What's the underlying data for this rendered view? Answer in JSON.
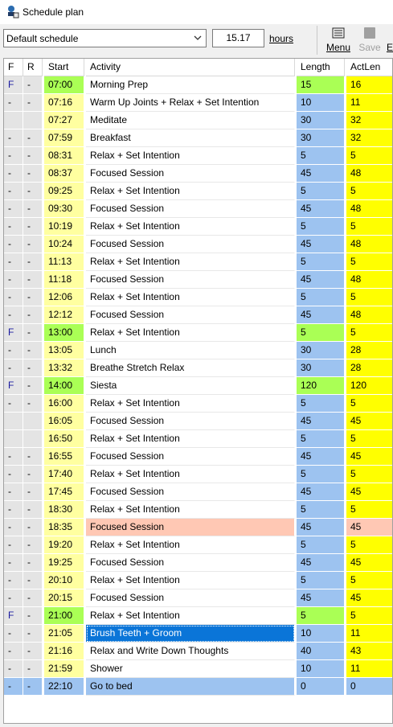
{
  "window": {
    "title": "Schedule plan"
  },
  "toolbar": {
    "schedule_select": "Default schedule",
    "hours_value": "15.17",
    "hours_label": "hours",
    "menu_label": "Menu",
    "save_label": "Save",
    "extra_label": "E"
  },
  "columns": {
    "f": "F",
    "r": "R",
    "start": "Start",
    "activity": "Activity",
    "length": "Length",
    "actlen": "ActLen"
  },
  "colors": {
    "yellow": "#ffff00",
    "lightyellow": "#ffffa0",
    "green": "#aaff55",
    "blue": "#9dc3f0",
    "salmon": "#ffc8b4",
    "selected": "#0a75d8"
  },
  "rows": [
    {
      "f": "F",
      "r": "-",
      "start": "07:00",
      "activity": "Morning Prep",
      "length": "15",
      "actlen": "16"
    },
    {
      "f": "-",
      "r": "-",
      "start": "07:16",
      "activity": "Warm Up Joints + Relax + Set Intention",
      "length": "10",
      "actlen": "11"
    },
    {
      "f": "",
      "r": "",
      "start": "07:27",
      "activity": "Meditate",
      "length": "30",
      "actlen": "32"
    },
    {
      "f": "-",
      "r": "-",
      "start": "07:59",
      "activity": "Breakfast",
      "length": "30",
      "actlen": "32"
    },
    {
      "f": "-",
      "r": "-",
      "start": "08:31",
      "activity": "Relax + Set Intention",
      "length": "5",
      "actlen": "5"
    },
    {
      "f": "-",
      "r": "-",
      "start": "08:37",
      "activity": "Focused Session",
      "length": "45",
      "actlen": "48"
    },
    {
      "f": "-",
      "r": "-",
      "start": "09:25",
      "activity": "Relax + Set Intention",
      "length": "5",
      "actlen": "5"
    },
    {
      "f": "-",
      "r": "-",
      "start": "09:30",
      "activity": "Focused Session",
      "length": "45",
      "actlen": "48"
    },
    {
      "f": "-",
      "r": "-",
      "start": "10:19",
      "activity": "Relax + Set Intention",
      "length": "5",
      "actlen": "5"
    },
    {
      "f": "-",
      "r": "-",
      "start": "10:24",
      "activity": "Focused Session",
      "length": "45",
      "actlen": "48"
    },
    {
      "f": "-",
      "r": "-",
      "start": "11:13",
      "activity": "Relax + Set Intention",
      "length": "5",
      "actlen": "5"
    },
    {
      "f": "-",
      "r": "-",
      "start": "11:18",
      "activity": "Focused Session",
      "length": "45",
      "actlen": "48"
    },
    {
      "f": "-",
      "r": "-",
      "start": "12:06",
      "activity": "Relax + Set Intention",
      "length": "5",
      "actlen": "5"
    },
    {
      "f": "-",
      "r": "-",
      "start": "12:12",
      "activity": "Focused Session",
      "length": "45",
      "actlen": "48"
    },
    {
      "f": "F",
      "r": "-",
      "start": "13:00",
      "activity": "Relax + Set Intention",
      "length": "5",
      "actlen": "5"
    },
    {
      "f": "-",
      "r": "-",
      "start": "13:05",
      "activity": "Lunch",
      "length": "30",
      "actlen": "28"
    },
    {
      "f": "-",
      "r": "-",
      "start": "13:32",
      "activity": "Breathe Stretch Relax",
      "length": "30",
      "actlen": "28"
    },
    {
      "f": "F",
      "r": "-",
      "start": "14:00",
      "activity": "Siesta",
      "length": "120",
      "actlen": "120"
    },
    {
      "f": "-",
      "r": "-",
      "start": "16:00",
      "activity": "Relax + Set Intention",
      "length": "5",
      "actlen": "5"
    },
    {
      "f": "",
      "r": "",
      "start": "16:05",
      "activity": "Focused Session",
      "length": "45",
      "actlen": "45"
    },
    {
      "f": "",
      "r": "",
      "start": "16:50",
      "activity": "Relax + Set Intention",
      "length": "5",
      "actlen": "5"
    },
    {
      "f": "-",
      "r": "-",
      "start": "16:55",
      "activity": "Focused Session",
      "length": "45",
      "actlen": "45"
    },
    {
      "f": "-",
      "r": "-",
      "start": "17:40",
      "activity": "Relax + Set Intention",
      "length": "5",
      "actlen": "5"
    },
    {
      "f": "-",
      "r": "-",
      "start": "17:45",
      "activity": "Focused Session",
      "length": "45",
      "actlen": "45"
    },
    {
      "f": "-",
      "r": "-",
      "start": "18:30",
      "activity": "Relax + Set Intention",
      "length": "5",
      "actlen": "5"
    },
    {
      "f": "-",
      "r": "-",
      "start": "18:35",
      "activity": "Focused Session",
      "length": "45",
      "actlen": "45"
    },
    {
      "f": "-",
      "r": "-",
      "start": "19:20",
      "activity": "Relax + Set Intention",
      "length": "5",
      "actlen": "5"
    },
    {
      "f": "-",
      "r": "-",
      "start": "19:25",
      "activity": "Focused Session",
      "length": "45",
      "actlen": "45"
    },
    {
      "f": "-",
      "r": "-",
      "start": "20:10",
      "activity": "Relax + Set Intention",
      "length": "5",
      "actlen": "5"
    },
    {
      "f": "-",
      "r": "-",
      "start": "20:15",
      "activity": "Focused Session",
      "length": "45",
      "actlen": "45"
    },
    {
      "f": "F",
      "r": "-",
      "start": "21:00",
      "activity": "Relax + Set Intention",
      "length": "5",
      "actlen": "5"
    },
    {
      "f": "-",
      "r": "-",
      "start": "21:05",
      "activity": "Brush Teeth + Groom",
      "length": "10",
      "actlen": "11"
    },
    {
      "f": "-",
      "r": "-",
      "start": "21:16",
      "activity": "Relax and Write Down Thoughts",
      "length": "40",
      "actlen": "43"
    },
    {
      "f": "-",
      "r": "-",
      "start": "21:59",
      "activity": "Shower",
      "length": "10",
      "actlen": "11"
    },
    {
      "f": "-",
      "r": "-",
      "start": "22:10",
      "activity": "Go to bed",
      "length": "0",
      "actlen": "0"
    }
  ]
}
